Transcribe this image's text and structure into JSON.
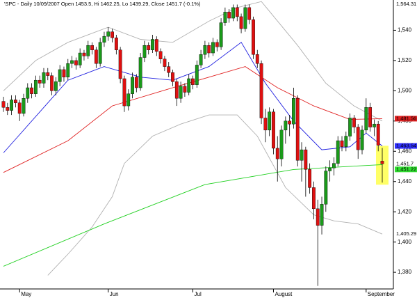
{
  "chart_data": {
    "type": "candlestick",
    "title": "'SPC - Daily 10/09/2007 Open 1453.5, Hi 1462.25, Lo 1439.29, Close 1451.7 (-0.1%)",
    "up_color": "#1a9a1a",
    "down_color": "#e01010",
    "highlight_color": "#ffff66",
    "ylim": [
      1369,
      1560
    ],
    "yticks": [
      {
        "value": 1380,
        "label": "1,380"
      },
      {
        "value": 1400,
        "label": "1,400"
      },
      {
        "value": 1420,
        "label": "1,420"
      },
      {
        "value": 1440,
        "label": "1,440"
      },
      {
        "value": 1460,
        "label": "1,460"
      },
      {
        "value": 1480,
        "label": "1,480"
      },
      {
        "value": 1500,
        "label": "1,500"
      },
      {
        "value": 1520,
        "label": "1,520"
      },
      {
        "value": 1540,
        "label": "1,540"
      }
    ],
    "categories": [
      null,
      null,
      null,
      null,
      "May",
      null,
      null,
      null,
      null,
      null,
      null,
      null,
      null,
      null,
      null,
      null,
      null,
      null,
      null,
      null,
      null,
      null,
      null,
      null,
      null,
      null,
      "Jun",
      null,
      null,
      null,
      null,
      null,
      null,
      null,
      null,
      null,
      null,
      null,
      null,
      null,
      null,
      null,
      null,
      null,
      null,
      null,
      null,
      "Jul",
      null,
      null,
      null,
      null,
      null,
      null,
      null,
      null,
      null,
      null,
      null,
      null,
      null,
      null,
      null,
      null,
      null,
      null,
      null,
      "August",
      null,
      null,
      null,
      null,
      null,
      null,
      null,
      null,
      null,
      null,
      null,
      null,
      null,
      null,
      null,
      null,
      null,
      null,
      null,
      null,
      null,
      null,
      "September",
      null,
      null,
      null,
      null
    ],
    "ohlc": [
      [
        1493,
        1496,
        1486,
        1489
      ],
      [
        1489,
        1492,
        1484,
        1487
      ],
      [
        1487,
        1497,
        1484,
        1494
      ],
      [
        1494,
        1497,
        1489,
        1492
      ],
      [
        1492,
        1494,
        1480,
        1485
      ],
      [
        1485,
        1498,
        1483,
        1495
      ],
      [
        1495,
        1505,
        1492,
        1502
      ],
      [
        1502,
        1505,
        1495,
        1498
      ],
      [
        1498,
        1510,
        1496,
        1507
      ],
      [
        1507,
        1510,
        1502,
        1505
      ],
      [
        1505,
        1515,
        1502,
        1512
      ],
      [
        1512,
        1515,
        1507,
        1510
      ],
      [
        1510,
        1512,
        1497,
        1500
      ],
      [
        1500,
        1509,
        1497,
        1506
      ],
      [
        1506,
        1517,
        1503,
        1514
      ],
      [
        1514,
        1516,
        1506,
        1509
      ],
      [
        1509,
        1521,
        1507,
        1518
      ],
      [
        1518,
        1523,
        1515,
        1520
      ],
      [
        1520,
        1522,
        1514,
        1517
      ],
      [
        1517,
        1528,
        1515,
        1525
      ],
      [
        1525,
        1527,
        1520,
        1523
      ],
      [
        1523,
        1533,
        1521,
        1530
      ],
      [
        1530,
        1532,
        1524,
        1527
      ],
      [
        1527,
        1529,
        1515,
        1518
      ],
      [
        1518,
        1535,
        1516,
        1532
      ],
      [
        1532,
        1539,
        1529,
        1536
      ],
      [
        1536,
        1542,
        1533,
        1539
      ],
      [
        1539,
        1541,
        1532,
        1535
      ],
      [
        1535,
        1537,
        1524,
        1527
      ],
      [
        1527,
        1529,
        1505,
        1508
      ],
      [
        1508,
        1510,
        1486,
        1490
      ],
      [
        1490,
        1501,
        1487,
        1498
      ],
      [
        1498,
        1512,
        1495,
        1509
      ],
      [
        1509,
        1511,
        1499,
        1502
      ],
      [
        1502,
        1525,
        1500,
        1522
      ],
      [
        1522,
        1533,
        1519,
        1530
      ],
      [
        1530,
        1532,
        1524,
        1527
      ],
      [
        1527,
        1537,
        1525,
        1534
      ],
      [
        1534,
        1536,
        1523,
        1526
      ],
      [
        1526,
        1528,
        1518,
        1521
      ],
      [
        1521,
        1523,
        1513,
        1516
      ],
      [
        1516,
        1519,
        1509,
        1512
      ],
      [
        1512,
        1514,
        1503,
        1506
      ],
      [
        1506,
        1508,
        1490,
        1495
      ],
      [
        1495,
        1506,
        1492,
        1503
      ],
      [
        1503,
        1505,
        1496,
        1499
      ],
      [
        1499,
        1511,
        1497,
        1508
      ],
      [
        1508,
        1510,
        1501,
        1504
      ],
      [
        1504,
        1520,
        1502,
        1517
      ],
      [
        1517,
        1527,
        1515,
        1524
      ],
      [
        1524,
        1533,
        1521,
        1530
      ],
      [
        1530,
        1532,
        1522,
        1525
      ],
      [
        1525,
        1535,
        1523,
        1532
      ],
      [
        1532,
        1534,
        1526,
        1529
      ],
      [
        1529,
        1548,
        1527,
        1545
      ],
      [
        1545,
        1555,
        1543,
        1552
      ],
      [
        1552,
        1554,
        1545,
        1548
      ],
      [
        1548,
        1557,
        1546,
        1555
      ],
      [
        1555,
        1557,
        1546,
        1549
      ],
      [
        1549,
        1551,
        1538,
        1541
      ],
      [
        1541,
        1557,
        1539,
        1555
      ],
      [
        1555,
        1557,
        1544,
        1547
      ],
      [
        1547,
        1549,
        1521,
        1524
      ],
      [
        1524,
        1527,
        1515,
        1518
      ],
      [
        1518,
        1520,
        1478,
        1482
      ],
      [
        1482,
        1488,
        1466,
        1474
      ],
      [
        1474,
        1489,
        1470,
        1486
      ],
      [
        1486,
        1488,
        1458,
        1462
      ],
      [
        1462,
        1470,
        1440,
        1455
      ],
      [
        1455,
        1477,
        1450,
        1474
      ],
      [
        1474,
        1483,
        1465,
        1480
      ],
      [
        1480,
        1484,
        1470,
        1478
      ],
      [
        1478,
        1502,
        1475,
        1495
      ],
      [
        1495,
        1497,
        1450,
        1454
      ],
      [
        1454,
        1466,
        1440,
        1461
      ],
      [
        1461,
        1463,
        1430,
        1448
      ],
      [
        1448,
        1452,
        1432,
        1436
      ],
      [
        1436,
        1440,
        1415,
        1422
      ],
      [
        1422,
        1428,
        1371,
        1411
      ],
      [
        1411,
        1430,
        1405,
        1425
      ],
      [
        1425,
        1450,
        1420,
        1447
      ],
      [
        1447,
        1454,
        1440,
        1449
      ],
      [
        1449,
        1456,
        1444,
        1452
      ],
      [
        1452,
        1470,
        1450,
        1467
      ],
      [
        1467,
        1470,
        1460,
        1463
      ],
      [
        1463,
        1473,
        1460,
        1470
      ],
      [
        1470,
        1485,
        1467,
        1482
      ],
      [
        1482,
        1484,
        1472,
        1476
      ],
      [
        1476,
        1478,
        1455,
        1461
      ],
      [
        1461,
        1477,
        1458,
        1474
      ],
      [
        1474,
        1495,
        1472,
        1489
      ],
      [
        1489,
        1492,
        1473,
        1476
      ],
      [
        1476,
        1481,
        1470,
        1478
      ],
      [
        1478,
        1480,
        1460,
        1464
      ],
      [
        1453.5,
        1462.25,
        1439.29,
        1451.7
      ]
    ],
    "series": [
      {
        "color": "#b0b0b0",
        "x": [
          0,
          8,
          16,
          26,
          34,
          42,
          51,
          58,
          64,
          73,
          80,
          87,
          94
        ],
        "values": [
          1500,
          1520,
          1532,
          1542,
          1534,
          1532,
          1546,
          1555,
          1559,
          1530,
          1505,
          1490,
          1480
        ]
      },
      {
        "color": "#b0b0b0",
        "x": [
          11,
          16,
          22,
          27,
          30,
          37,
          44,
          51,
          58,
          63,
          70,
          77,
          82,
          88,
          94
        ],
        "values": [
          1378,
          1392,
          1410,
          1430,
          1452,
          1470,
          1478,
          1484,
          1484,
          1470,
          1436,
          1418,
          1414,
          1412,
          1405.29
        ]
      },
      {
        "color": "#2020e0",
        "x": [
          0,
          9,
          16,
          25,
          34,
          42,
          51,
          59,
          65,
          72,
          79,
          86,
          90,
          94
        ],
        "values": [
          1459,
          1486,
          1507,
          1516,
          1509,
          1507,
          1516,
          1532,
          1505,
          1480,
          1461,
          1463,
          1472,
          1463.54
        ]
      },
      {
        "color": "#e02020",
        "x": [
          0,
          16,
          27,
          42,
          51,
          60,
          68,
          77,
          86,
          94
        ],
        "values": [
          1446,
          1467,
          1490,
          1502,
          1509,
          1516,
          1502,
          1490,
          1481,
          1481.56
        ]
      },
      {
        "color": "#20d020",
        "x": [
          0,
          25,
          50,
          72,
          94
        ],
        "values": [
          1384,
          1412,
          1438,
          1448,
          1451.22
        ]
      }
    ],
    "price_tags": [
      {
        "value": 1564.31,
        "label": "1,564.31",
        "color": "#ffffff",
        "text_color": "#000000"
      },
      {
        "value": 1481.56,
        "label": "1,481.56",
        "color": "#e02020",
        "text_color": "#000000"
      },
      {
        "value": 1463.54,
        "label": "1,463.54",
        "color": "#3030ff",
        "text_color": "#ffffff"
      },
      {
        "value": 1451.7,
        "label": "1,451.7",
        "color": "#ffffff",
        "text_color": "#000000"
      },
      {
        "value": 1451.22,
        "label": "1,451.22",
        "color": "#30e030",
        "text_color": "#000000"
      },
      {
        "value": 1405.29,
        "label": "1,405.29",
        "color": "#ffffff",
        "text_color": "#000000"
      }
    ]
  }
}
